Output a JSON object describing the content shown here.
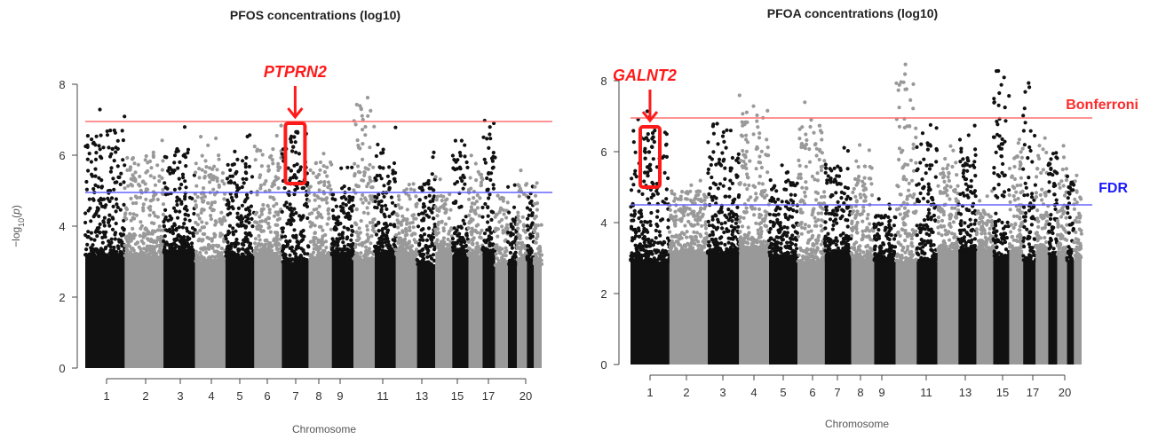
{
  "chart_data": [
    {
      "type": "scatter",
      "subtype": "manhattan",
      "title": "PFOS concentrations (log10)",
      "xlabel": "Chromosome",
      "ylabel": "-log10(p)",
      "ylim": [
        0,
        8
      ],
      "yticks": [
        0,
        2,
        4,
        6,
        8
      ],
      "xtick_labels": [
        "1",
        "2",
        "3",
        "4",
        "5",
        "6",
        "7",
        "8",
        "9",
        "11",
        "13",
        "15",
        "17",
        "20"
      ],
      "chromosomes": [
        "1",
        "2",
        "3",
        "4",
        "5",
        "6",
        "7",
        "8",
        "9",
        "10",
        "11",
        "12",
        "13",
        "14",
        "15",
        "16",
        "17",
        "18",
        "19",
        "20",
        "21",
        "22"
      ],
      "colors": {
        "odd": "#111111",
        "even": "#999999",
        "bonferroni": "#ff7070",
        "fdr": "#6666ff",
        "annotation": "#ff1a1a"
      },
      "thresholds": [
        {
          "name": "Bonferroni",
          "y": 6.95,
          "label": ""
        },
        {
          "name": "FDR",
          "y": 4.95,
          "label": ""
        }
      ],
      "annotation": {
        "gene": "PTPRN2",
        "chromosome": "7",
        "box_y": [
          5.2,
          6.9
        ]
      },
      "peak_max_per_chromosome": [
        7.3,
        6.6,
        6.8,
        6.6,
        6.6,
        6.9,
        6.9,
        6.4,
        5.8,
        8.0,
        6.8,
        5.8,
        6.2,
        5.5,
        6.9,
        6.1,
        7.2,
        5.5,
        5.2,
        5.8,
        5.5,
        5.3
      ]
    },
    {
      "type": "scatter",
      "subtype": "manhattan",
      "title": "PFOA concentrations (log10)",
      "xlabel": "Chromosome",
      "ylabel": "",
      "ylim": [
        0,
        8
      ],
      "yticks": [
        0,
        2,
        4,
        6,
        8
      ],
      "xtick_labels": [
        "1",
        "2",
        "3",
        "4",
        "5",
        "6",
        "7",
        "8",
        "9",
        "11",
        "13",
        "15",
        "17",
        "20"
      ],
      "chromosomes": [
        "1",
        "2",
        "3",
        "4",
        "5",
        "6",
        "7",
        "8",
        "9",
        "10",
        "11",
        "12",
        "13",
        "14",
        "15",
        "16",
        "17",
        "18",
        "19",
        "20",
        "21",
        "22"
      ],
      "colors": {
        "odd": "#111111",
        "even": "#999999",
        "bonferroni": "#ff7070",
        "fdr": "#6666ff",
        "annotation": "#ff1a1a"
      },
      "thresholds": [
        {
          "name": "Bonferroni",
          "y": 6.95,
          "label": "Bonferroni"
        },
        {
          "name": "FDR",
          "y": 4.5,
          "label": "FDR"
        }
      ],
      "annotation": {
        "gene": "GALNT2",
        "chromosome": "1",
        "box_y": [
          5.0,
          6.7
        ]
      },
      "peak_max_per_chromosome": [
        7.2,
        5.5,
        7.4,
        7.8,
        5.9,
        7.4,
        6.2,
        6.2,
        4.8,
        8.6,
        6.9,
        6.3,
        6.8,
        5.0,
        8.5,
        6.7,
        8.0,
        6.6,
        6.5,
        6.2,
        5.8,
        5.5
      ]
    }
  ]
}
